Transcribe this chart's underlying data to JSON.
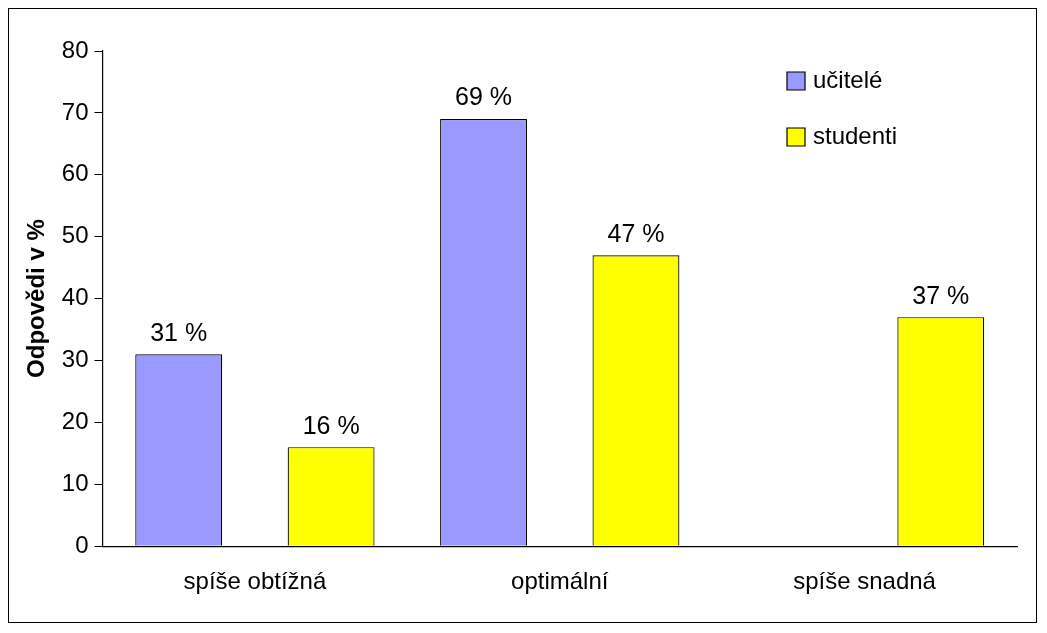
{
  "chart_data": {
    "type": "bar",
    "ylabel": "Odpovědi v %",
    "categories": [
      "spíše obtížná",
      "optimální",
      "spíše snadná"
    ],
    "series": [
      {
        "name": "učitelé",
        "color": "#9999ff",
        "values": [
          31,
          69,
          null
        ],
        "value_labels": [
          "31 %",
          "69 %",
          null
        ]
      },
      {
        "name": "studenti",
        "color": "#ffff00",
        "values": [
          16,
          47,
          37
        ],
        "value_labels": [
          "16 %",
          "47 %",
          "37 %"
        ]
      }
    ],
    "ylim": [
      0,
      80
    ],
    "yticks": [
      0,
      10,
      20,
      30,
      40,
      50,
      60,
      70,
      80
    ],
    "grid": false,
    "legend": "top right"
  }
}
